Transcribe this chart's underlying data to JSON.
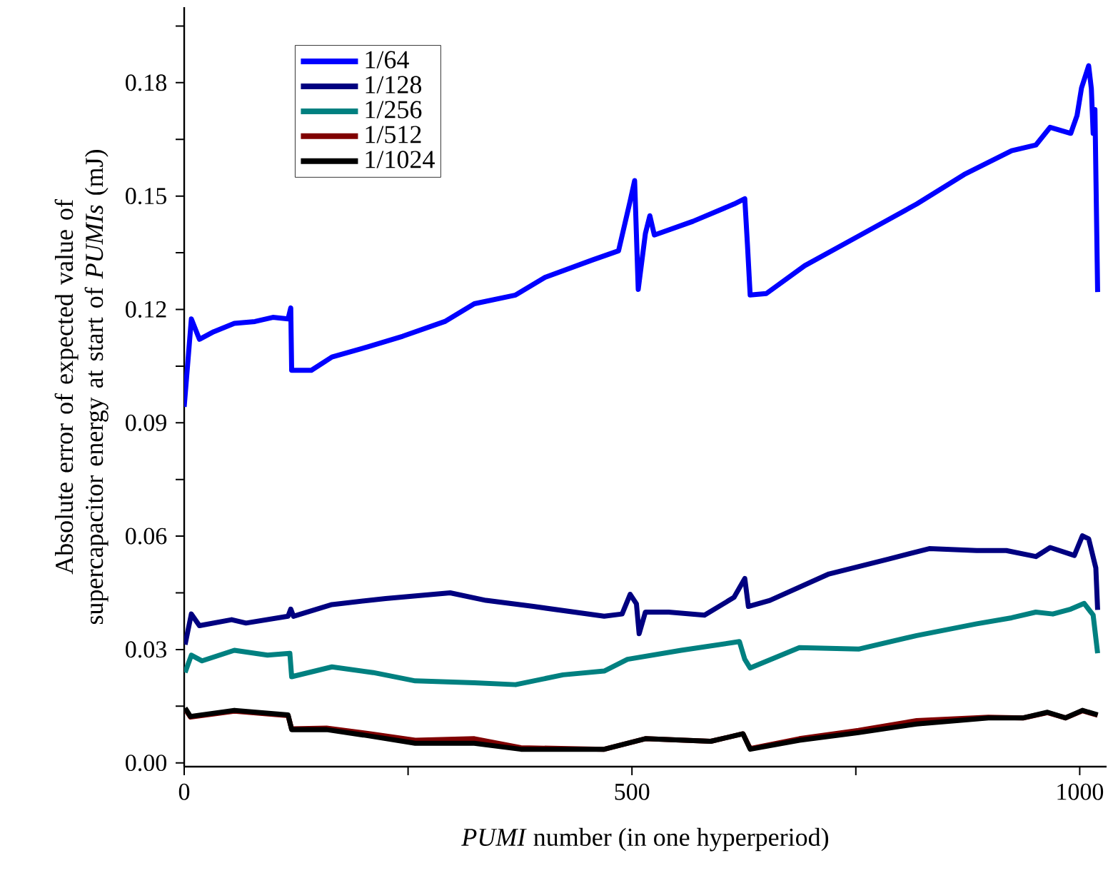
{
  "chart_data": {
    "type": "line",
    "xlabel": "*PUMI* number (in one hyperperiod)",
    "ylabel": "Absolute error of expected value of supercapacitor energy at start of *PUMIs* (mJ)",
    "xlim": [
      0,
      1030
    ],
    "ylim": [
      -0.001,
      0.2
    ],
    "xticks": [
      0,
      {
        "value": 250,
        "label": null
      },
      500,
      {
        "value": 750,
        "label": null
      },
      1000
    ],
    "yticks": [
      {
        "value": 0,
        "label": "0.00"
      },
      {
        "value": 0.015,
        "label": null
      },
      0.03,
      {
        "value": 0.045,
        "label": null
      },
      0.06,
      {
        "value": 0.075,
        "label": null
      },
      0.09,
      {
        "value": 0.105,
        "label": null
      },
      0.12,
      {
        "value": 0.135,
        "label": null
      },
      0.15,
      {
        "value": 0.165,
        "label": null
      },
      0.18,
      {
        "value": 0.195,
        "label": null
      }
    ],
    "legend": "top left",
    "series": [
      {
        "name": "1/64",
        "color": "#0000ff",
        "x": [
          0,
          8,
          17,
          33,
          56,
          79,
          99,
          116,
          119,
          120,
          142,
          165,
          205,
          244,
          291,
          324,
          370,
          403,
          456,
          485,
          498,
          503,
          507,
          515,
          520,
          525,
          568,
          614,
          626,
          629,
          632,
          650,
          693,
          753,
          818,
          871,
          924,
          951,
          967,
          990,
          997,
          1002,
          1010,
          1013,
          1015,
          1017,
          1020
        ],
        "values": [
          0.0942,
          0.1175,
          0.1121,
          0.1141,
          0.1163,
          0.1168,
          0.1179,
          0.1175,
          0.1204,
          0.1039,
          0.1039,
          0.1074,
          0.1101,
          0.1129,
          0.1168,
          0.1215,
          0.1238,
          0.1285,
          0.1331,
          0.1355,
          0.1487,
          0.1541,
          0.1253,
          0.1401,
          0.1448,
          0.1397,
          0.1433,
          0.1479,
          0.1493,
          0.137,
          0.1238,
          0.1242,
          0.1316,
          0.1394,
          0.1479,
          0.1557,
          0.162,
          0.1635,
          0.1682,
          0.1666,
          0.1713,
          0.1786,
          0.1845,
          0.1784,
          0.1666,
          0.1729,
          0.1246
        ]
      },
      {
        "name": "1/128",
        "color": "#000080",
        "x": [
          1,
          8,
          17,
          53,
          69,
          116,
          119,
          122,
          165,
          225,
          297,
          337,
          390,
          469,
          489,
          498,
          505,
          508,
          515,
          541,
          581,
          614,
          626,
          630,
          654,
          720,
          786,
          832,
          885,
          918,
          951,
          967,
          994,
          1003,
          1010,
          1018,
          1020
        ],
        "values": [
          0.0313,
          0.0394,
          0.0363,
          0.0379,
          0.037,
          0.0388,
          0.0407,
          0.0388,
          0.0419,
          0.0435,
          0.045,
          0.043,
          0.0414,
          0.0388,
          0.0394,
          0.0446,
          0.0421,
          0.0342,
          0.0399,
          0.0399,
          0.0391,
          0.0438,
          0.0488,
          0.0414,
          0.043,
          0.05,
          0.0539,
          0.0567,
          0.0562,
          0.0562,
          0.0546,
          0.057,
          0.0549,
          0.0601,
          0.0593,
          0.0516,
          0.0405
        ]
      },
      {
        "name": "1/256",
        "color": "#008080",
        "x": [
          1,
          8,
          20,
          56,
          93,
          118,
          120,
          165,
          211,
          258,
          324,
          370,
          423,
          469,
          495,
          555,
          620,
          626,
          632,
          687,
          753,
          818,
          885,
          924,
          951,
          970,
          990,
          1005,
          1015,
          1020
        ],
        "values": [
          0.0239,
          0.0285,
          0.027,
          0.0298,
          0.0285,
          0.029,
          0.0228,
          0.0254,
          0.0239,
          0.0217,
          0.0212,
          0.0207,
          0.0233,
          0.0243,
          0.0274,
          0.0298,
          0.0321,
          0.0274,
          0.0251,
          0.0305,
          0.0301,
          0.0337,
          0.0368,
          0.0384,
          0.0399,
          0.0394,
          0.0407,
          0.0422,
          0.0391,
          0.029
        ]
      },
      {
        "name": "1/512",
        "color": "#800000",
        "x": [
          1,
          7,
          56,
          116,
          120,
          159,
          205,
          258,
          324,
          376,
          469,
          515,
          588,
          624,
          632,
          687,
          753,
          818,
          898,
          937,
          964,
          984,
          1003,
          1020
        ],
        "values": [
          0.0143,
          0.0121,
          0.0137,
          0.0125,
          0.009,
          0.0092,
          0.0078,
          0.006,
          0.0064,
          0.004,
          0.0036,
          0.0064,
          0.0057,
          0.0077,
          0.0038,
          0.0064,
          0.0086,
          0.0112,
          0.0121,
          0.0119,
          0.0133,
          0.0119,
          0.0138,
          0.0126
        ]
      },
      {
        "name": "1/1024",
        "color": "#000000",
        "x": [
          1,
          7,
          56,
          116,
          120,
          159,
          205,
          258,
          324,
          376,
          469,
          515,
          588,
          624,
          632,
          687,
          753,
          818,
          898,
          937,
          964,
          984,
          1003,
          1020
        ],
        "values": [
          0.0145,
          0.0123,
          0.0139,
          0.0127,
          0.0088,
          0.0088,
          0.0072,
          0.0052,
          0.0052,
          0.0036,
          0.0036,
          0.0064,
          0.0057,
          0.0077,
          0.0036,
          0.006,
          0.008,
          0.0103,
          0.0119,
          0.0119,
          0.0134,
          0.0119,
          0.0139,
          0.0127
        ]
      }
    ]
  }
}
